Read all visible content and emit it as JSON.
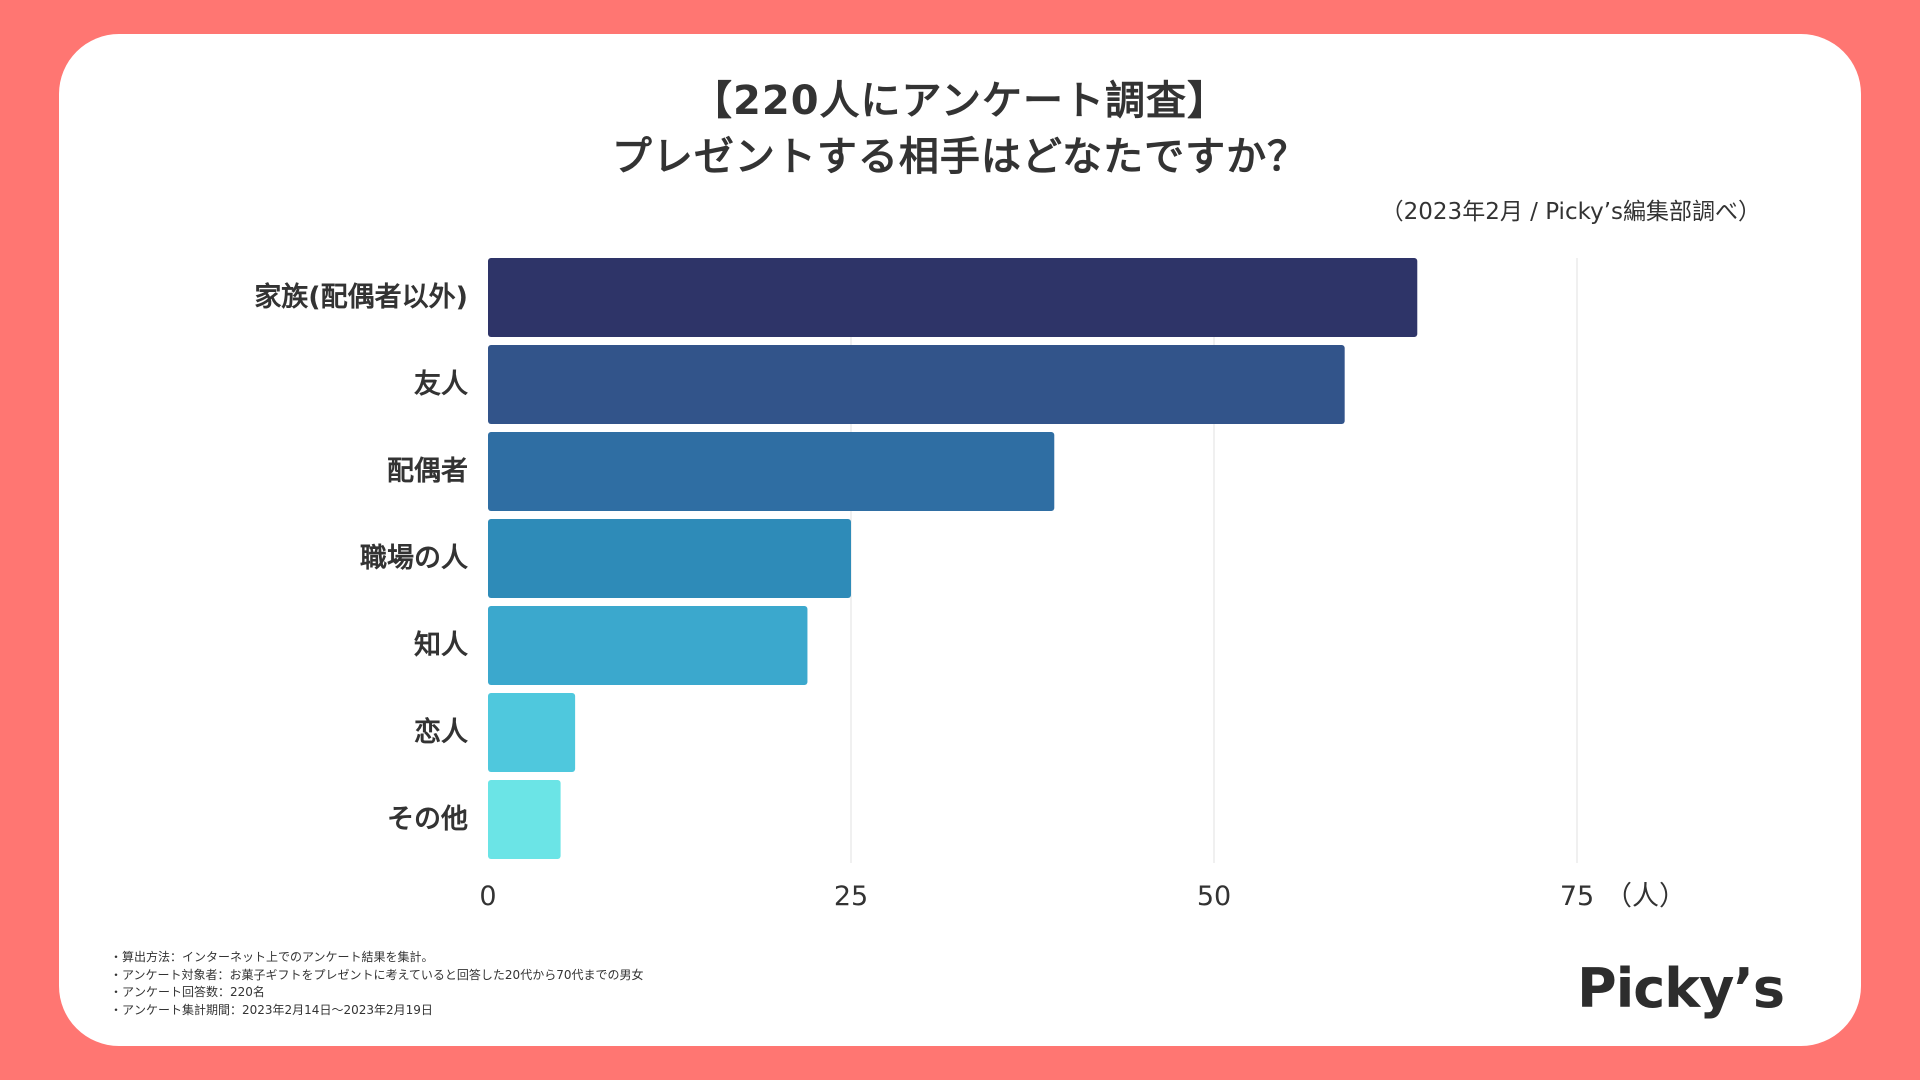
{
  "colors": {
    "background": "#ff7672",
    "card": "#ffffff",
    "text": "#333333",
    "grid": "#e0e0e0"
  },
  "header": {
    "title_line1": "【220人にアンケート調査】",
    "title_line2": "プレゼントする相手はどなたですか？",
    "source": "（2023年2月 / Picky’s編集部調べ）"
  },
  "chart_data": {
    "type": "bar",
    "orientation": "horizontal",
    "title": "【220人にアンケート調査】プレゼントする相手はどなたですか？",
    "categories": [
      "家族(配偶者以外)",
      "友人",
      "配偶者",
      "職場の人",
      "知人",
      "恋人",
      "その他"
    ],
    "values": [
      64,
      59,
      39,
      25,
      22,
      6,
      5
    ],
    "bar_colors": [
      "#2e3468",
      "#32548a",
      "#2f6ea3",
      "#2e8bb8",
      "#3ba8cd",
      "#4fc8dd",
      "#6be4e6"
    ],
    "xlim": [
      0,
      90
    ],
    "xticks": [
      0,
      25,
      50,
      75
    ],
    "tick_labels": [
      "0",
      "25",
      "50",
      "75"
    ],
    "unit_label": "（人）",
    "xlabel": "",
    "ylabel": "",
    "grid": true
  },
  "footnotes": [
    "・算出方法：インターネット上でのアンケート結果を集計。",
    "・アンケート対象者：お菓子ギフトをプレゼントに考えていると回答した20代から70代までの男女",
    "・アンケート回答数：220名",
    "・アンケート集計期間：2023年2月14日〜2023年2月19日"
  ],
  "brand": {
    "logo_text": "Picky’s"
  }
}
